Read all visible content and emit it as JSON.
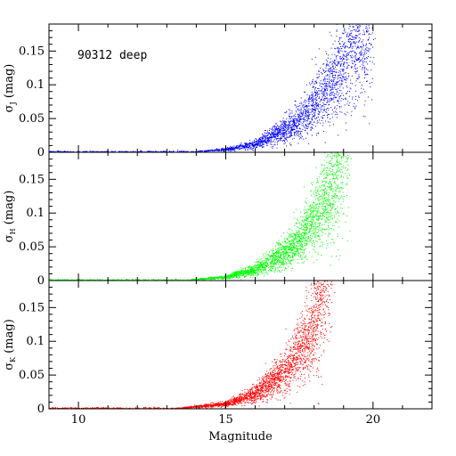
{
  "chart_data": {
    "type": "scatter",
    "annotation": "90312 deep",
    "xlabel": "Magnitude",
    "xlim": [
      9,
      22
    ],
    "xticks": [
      10,
      15,
      20
    ],
    "grid": false,
    "panels": [
      {
        "band": "J",
        "ylabel_prefix": "σ",
        "ylabel_sub": "J",
        "ylabel_suffix": "(mag)",
        "ylim": [
          0,
          0.19
        ],
        "yticks": [
          0,
          0.05,
          0.1,
          0.15
        ],
        "ytick_labels": [
          "0",
          "0.05",
          "0.1",
          "0.15"
        ],
        "color": "#0000ff",
        "curve": {
          "mag": [
            14.0,
            15.0,
            16.0,
            17.0,
            17.5,
            18.0,
            18.5,
            19.0,
            19.5,
            19.8
          ],
          "sigma": [
            0.001,
            0.004,
            0.012,
            0.032,
            0.048,
            0.07,
            0.098,
            0.135,
            0.175,
            0.19
          ]
        },
        "scatter_start_mag": 13.9
      },
      {
        "band": "H",
        "ylabel_prefix": "σ",
        "ylabel_sub": "H",
        "ylabel_suffix": "(mag)",
        "ylim": [
          0,
          0.19
        ],
        "yticks": [
          0,
          0.05,
          0.1,
          0.15
        ],
        "ytick_labels": [
          "0",
          "0.05",
          "0.1",
          "0.15"
        ],
        "color": "#00ff00",
        "curve": {
          "mag": [
            13.8,
            15.0,
            16.0,
            17.0,
            17.5,
            18.0,
            18.5,
            18.8,
            19.0
          ],
          "sigma": [
            0.001,
            0.005,
            0.016,
            0.04,
            0.06,
            0.088,
            0.128,
            0.16,
            0.19
          ]
        },
        "scatter_start_mag": 13.5
      },
      {
        "band": "K",
        "ylabel_prefix": "σ",
        "ylabel_sub": "K",
        "ylabel_suffix": "(mag)",
        "ylim": [
          0,
          0.19
        ],
        "yticks": [
          0,
          0.05,
          0.1,
          0.15
        ],
        "ytick_labels": [
          "0",
          "0.05",
          "0.1",
          "0.15"
        ],
        "color": "#ff0000",
        "curve": {
          "mag": [
            13.5,
            15.0,
            16.0,
            17.0,
            17.5,
            18.0,
            18.2,
            18.4
          ],
          "sigma": [
            0.001,
            0.007,
            0.022,
            0.055,
            0.085,
            0.13,
            0.16,
            0.19
          ]
        },
        "scatter_start_mag": 13.0
      }
    ]
  }
}
